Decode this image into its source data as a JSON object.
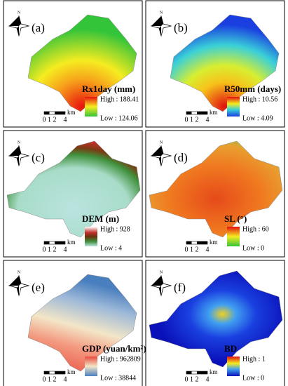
{
  "north": "N",
  "scale": {
    "ticks": [
      "0",
      "1",
      "2",
      "4"
    ],
    "unit": "km"
  },
  "panels": [
    {
      "label": "(a)",
      "legend_title": "Rx1day  (mm)",
      "high": "High : 188.41",
      "low": "Low : 124.06"
    },
    {
      "label": "(b)",
      "legend_title": "R50mm (days)",
      "high": "High : 10.56",
      "low": "Low : 4.09"
    },
    {
      "label": "(c)",
      "legend_title": "DEM (m)",
      "high": "High : 928",
      "low": "Low : 4"
    },
    {
      "label": "(d)",
      "legend_title": "SL (°)",
      "high": "High : 60",
      "low": "Low : 0"
    },
    {
      "label": "(e)",
      "legend_title": "GDP (yuan/km²)",
      "high": "High : 962809",
      "low": "Low : 38844"
    },
    {
      "label": "(f)",
      "legend_title": "BD",
      "high": "High : 1",
      "low": "Low : 0"
    }
  ]
}
